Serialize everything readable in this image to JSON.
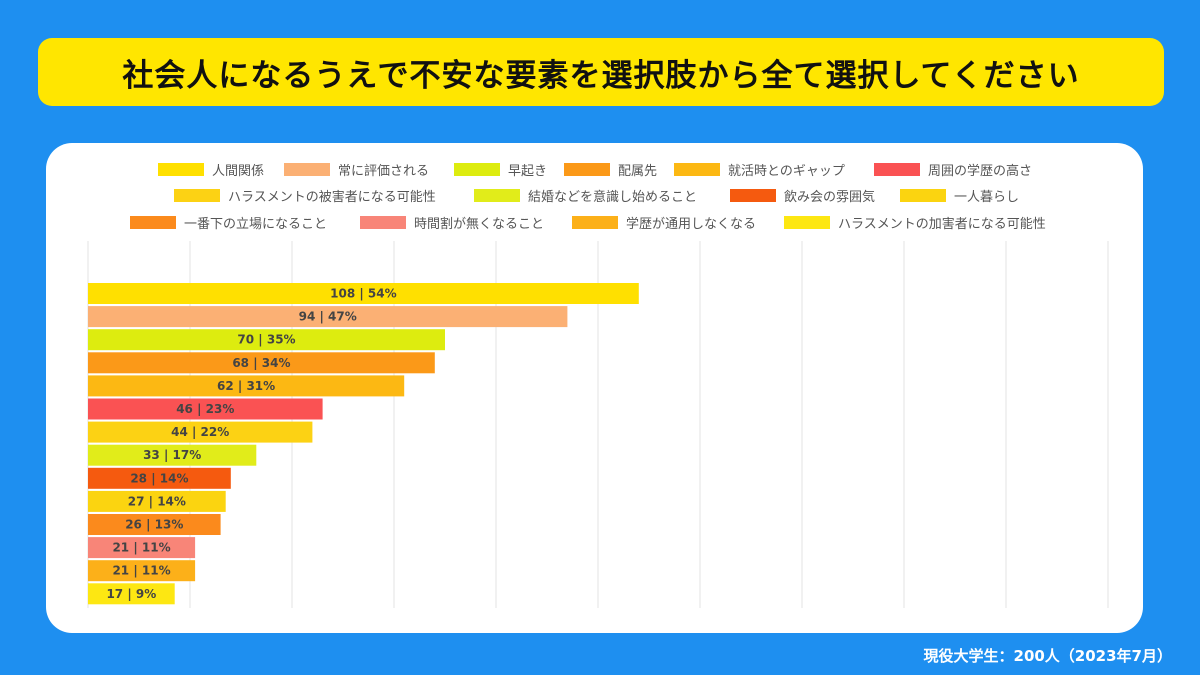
{
  "title": "社会人になるうえで不安な要素を選択肢から全て選択してください",
  "footer": "現役大学生：200人（2023年7月）",
  "chart_data": {
    "type": "bar",
    "orientation": "horizontal",
    "grid": true,
    "legend_position": "top",
    "xlim": [
      0,
      200
    ],
    "categories": [
      "人間関係",
      "常に評価される",
      "早起き",
      "配属先",
      "就活時とのギャップ",
      "周囲の学歴の高さ",
      "ハラスメントの被害者になる可能性",
      "結婚などを意識し始めること",
      "飲み会の雰囲気",
      "一人暮らし",
      "一番下の立場になること",
      "時間割が無くなること",
      "学歴が通用しなくなる",
      "ハラスメントの加害者になる可能性"
    ],
    "values": [
      108,
      94,
      70,
      68,
      62,
      46,
      44,
      33,
      28,
      27,
      26,
      21,
      21,
      17
    ],
    "percents": [
      "54%",
      "47%",
      "35%",
      "34%",
      "31%",
      "23%",
      "22%",
      "17%",
      "14%",
      "14%",
      "13%",
      "11%",
      "11%",
      "9%"
    ],
    "data_labels": [
      "108 | 54%",
      "94 | 47%",
      "70 | 35%",
      "68 | 34%",
      "62 | 31%",
      "46 | 23%",
      "44 | 22%",
      "33 | 17%",
      "28 | 14%",
      "27 | 14%",
      "26 | 13%",
      "21 | 11%",
      "21 | 11%",
      "17 | 9%"
    ],
    "colors": [
      "#ffe000",
      "#fbb074",
      "#ddec0f",
      "#fb9918",
      "#fcb813",
      "#fa5253",
      "#fcd214",
      "#e1ec1a",
      "#f55a0f",
      "#fbd410",
      "#fb8a1c",
      "#f88578",
      "#fcb019",
      "#fde712"
    ]
  }
}
